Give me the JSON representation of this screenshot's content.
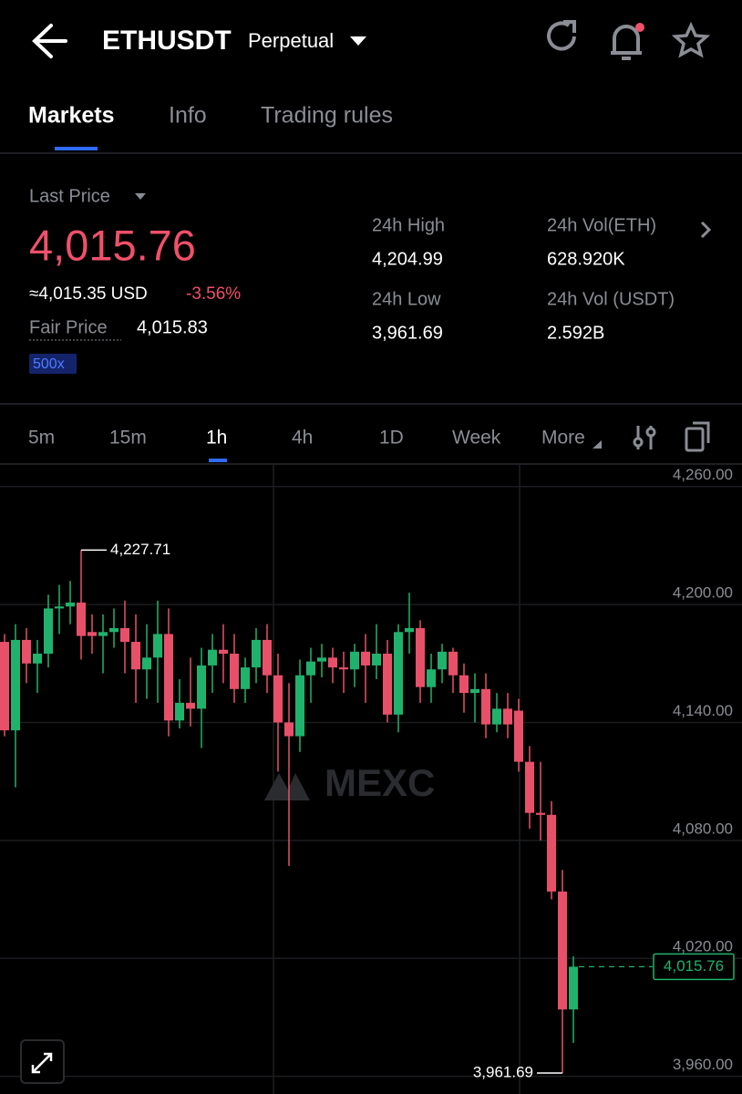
{
  "header": {
    "title": "ETHUSDT",
    "subtitle": "Perpetual"
  },
  "tabs": [
    "Markets",
    "Info",
    "Trading rules"
  ],
  "ticker": {
    "last_price_label": "Last Price",
    "last_price": "4,015.76",
    "usd": "≈4,015.35 USD",
    "change": "-3.56%",
    "fair_price_label": "Fair Price",
    "fair_price": "4,015.83",
    "leverage": "500x",
    "stats": [
      {
        "label": "24h High",
        "value": "4,204.99"
      },
      {
        "label": "24h Vol(ETH)",
        "value": "628.920K"
      },
      {
        "label": "24h Low",
        "value": "3,961.69"
      },
      {
        "label": "24h Vol (USDT)",
        "value": "2.592B"
      }
    ]
  },
  "intervals": [
    "5m",
    "15m",
    "1h",
    "4h",
    "1D",
    "Week",
    "More"
  ],
  "chart_data": {
    "type": "candlestick",
    "watermark": "MEXC",
    "up_color": "#20b26c",
    "down_color": "#e8506a",
    "grid": true,
    "ylim": [
      3951,
      4271
    ],
    "yticks": [
      {
        "value": 3960,
        "label": "3,960.00"
      },
      {
        "value": 4020,
        "label": "4,020.00"
      },
      {
        "value": 4080,
        "label": "4,080.00"
      },
      {
        "value": 4140,
        "label": "4,140.00"
      },
      {
        "value": 4200,
        "label": "4,200.00"
      },
      {
        "value": 4260,
        "label": "4,260.00"
      }
    ],
    "open": [
      4181,
      4136,
      4182,
      4170,
      4175,
      4198,
      4199,
      4201,
      4186,
      4184,
      4186,
      4188,
      4181,
      4167,
      4173,
      4185,
      4141,
      4150,
      4147,
      4169,
      4177,
      4175,
      4157,
      4168,
      4182,
      4164,
      4140,
      4133,
      4164,
      4171,
      4173,
      4168,
      4167,
      4176,
      4169,
      4175,
      4144,
      4186,
      4188,
      4158,
      4167,
      4176,
      4164,
      4155,
      4157,
      4139,
      4147,
      4146,
      4120,
      4094,
      4093,
      4054,
      3994
    ],
    "high": [
      4185,
      4190,
      4188,
      4182,
      4205,
      4210,
      4212,
      4227.71,
      4195,
      4195,
      4198,
      4202,
      4195,
      4190,
      4202,
      4198,
      4162,
      4173,
      4178,
      4185,
      4190,
      4185,
      4173,
      4188,
      4190,
      4175,
      4160,
      4172,
      4178,
      4180,
      4178,
      4176,
      4180,
      4185,
      4190,
      4182,
      4190,
      4206,
      4192,
      4175,
      4180,
      4178,
      4170,
      4165,
      4165,
      4155,
      4155,
      4152,
      4128,
      4120,
      4100,
      4065,
      4021
    ],
    "low": [
      4133,
      4107,
      4160,
      4155,
      4168,
      4185,
      4190,
      4172,
      4175,
      4165,
      4178,
      4165,
      4150,
      4152,
      4150,
      4133,
      4137,
      4138,
      4127,
      4155,
      4160,
      4150,
      4150,
      4160,
      4155,
      4115,
      4067,
      4125,
      4150,
      4163,
      4160,
      4155,
      4158,
      4150,
      4162,
      4140,
      4135,
      4175,
      4150,
      4150,
      4160,
      4155,
      4145,
      4140,
      4132,
      4135,
      4132,
      4115,
      4086,
      4080,
      4050,
      3961.69,
      3977
    ],
    "close": [
      4136,
      4182,
      4170,
      4175,
      4198,
      4199,
      4201,
      4184,
      4184,
      4186,
      4188,
      4181,
      4167,
      4173,
      4185,
      4141,
      4150,
      4147,
      4169,
      4177,
      4175,
      4157,
      4168,
      4182,
      4164,
      4140,
      4133,
      4164,
      4171,
      4173,
      4168,
      4167,
      4176,
      4169,
      4175,
      4144,
      4186,
      4188,
      4158,
      4167,
      4176,
      4164,
      4155,
      4157,
      4139,
      4147,
      4139,
      4120,
      4094,
      4093,
      4054,
      3994,
      4015.76
    ],
    "high_label": {
      "value": 4227.71,
      "label": "4,227.71"
    },
    "low_label": {
      "value": 3961.69,
      "label": "3,961.69"
    },
    "last_price": {
      "value": 4015.76,
      "label": "4,015.76"
    }
  }
}
